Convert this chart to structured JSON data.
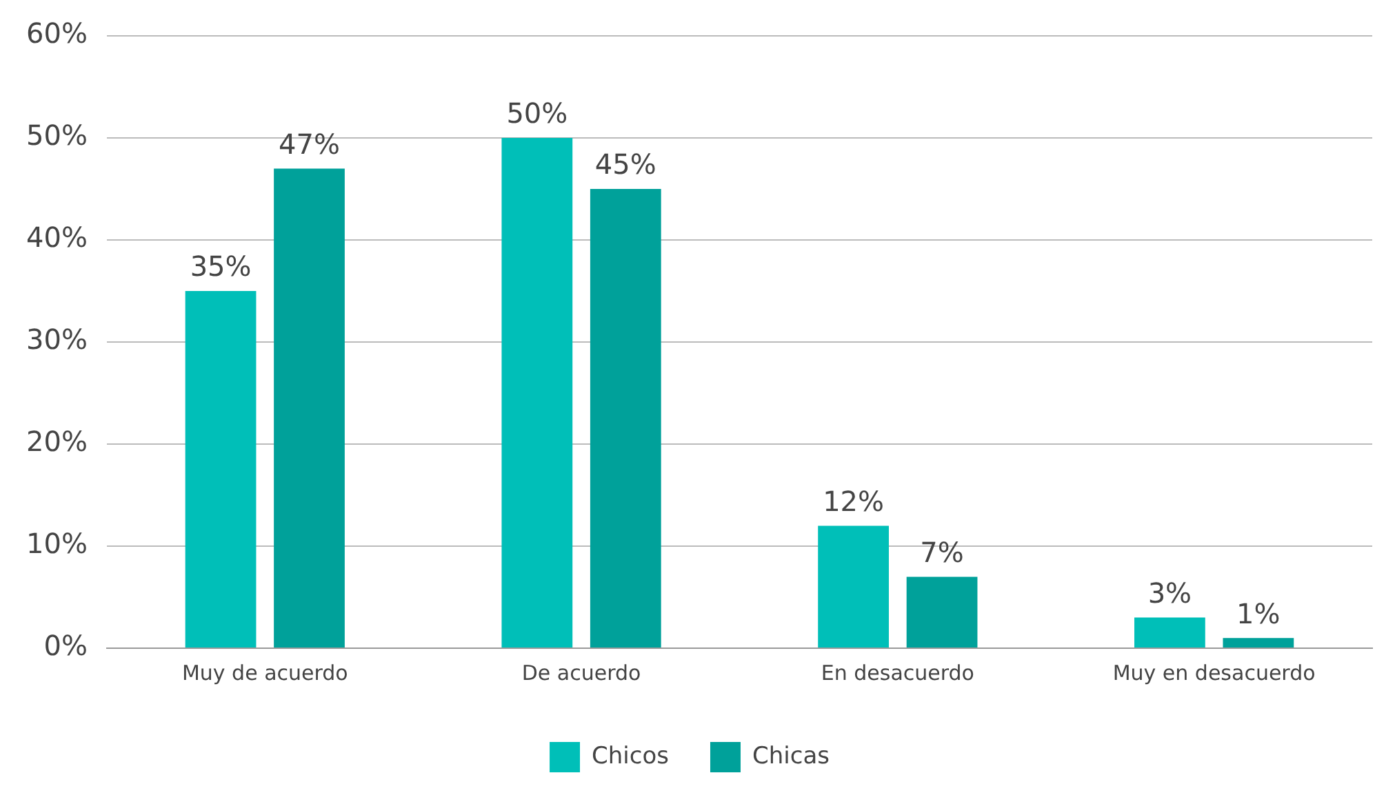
{
  "chart_data": {
    "type": "bar",
    "categories": [
      "Muy de acuerdo",
      "De acuerdo",
      "En desacuerdo",
      "Muy en desacuerdo"
    ],
    "series": [
      {
        "name": "Chicos",
        "color": "#00bfb8",
        "values": [
          35,
          50,
          12,
          3
        ],
        "value_labels": [
          "35%",
          "50%",
          "12%",
          "3%"
        ]
      },
      {
        "name": "Chicas",
        "color": "#00a19a",
        "values": [
          47,
          45,
          7,
          1
        ],
        "value_labels": [
          "47%",
          "45%",
          "7%",
          "1%"
        ]
      }
    ],
    "ylim": [
      0,
      60
    ],
    "yticks": [
      {
        "value": 0,
        "label": "0%"
      },
      {
        "value": 10,
        "label": "10%"
      },
      {
        "value": 20,
        "label": "20%"
      },
      {
        "value": 30,
        "label": "30%"
      },
      {
        "value": 40,
        "label": "40%"
      },
      {
        "value": 50,
        "label": "50%"
      },
      {
        "value": 60,
        "label": "60%"
      }
    ],
    "grid": "y",
    "legend": "bottom"
  }
}
